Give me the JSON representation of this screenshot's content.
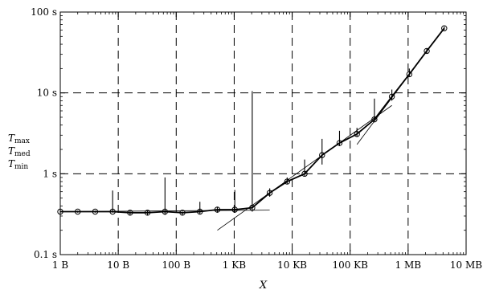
{
  "chart_data": {
    "type": "line",
    "title": "",
    "xlabel": "X",
    "ylabel_lines": [
      {
        "main": "T",
        "sub": "max"
      },
      {
        "main": "T",
        "sub": "med"
      },
      {
        "main": "T",
        "sub": "min"
      }
    ],
    "x_scale": "log2",
    "y_scale": "log10",
    "x_unit": "bytes",
    "y_unit": "seconds",
    "xlim": [
      1,
      10000000
    ],
    "ylim": [
      0.1,
      100
    ],
    "grid": true,
    "grid_style": "dashed",
    "x_ticks": [
      {
        "value": 1,
        "label": "1 B"
      },
      {
        "value": 10,
        "label": "10 B"
      },
      {
        "value": 100,
        "label": "100 B"
      },
      {
        "value": 1000,
        "label": "1 KB"
      },
      {
        "value": 10000,
        "label": "10 KB"
      },
      {
        "value": 100000,
        "label": "100 KB"
      },
      {
        "value": 1000000,
        "label": "1 MB"
      },
      {
        "value": 10000000,
        "label": "10 MB"
      }
    ],
    "y_ticks": [
      {
        "value": 0.1,
        "label": "0.1 s"
      },
      {
        "value": 1,
        "label": "1 s"
      },
      {
        "value": 10,
        "label": "10 s"
      },
      {
        "value": 100,
        "label": "100 s"
      }
    ],
    "series": [
      {
        "x": [
          1,
          2,
          4,
          8,
          16,
          32,
          64,
          128,
          256,
          512,
          1024,
          2048,
          4096,
          8192,
          16384,
          32768,
          65536,
          131072,
          262144,
          524288,
          1048576,
          2097152,
          4194304
        ],
        "t_med": [
          0.34,
          0.34,
          0.34,
          0.34,
          0.33,
          0.33,
          0.34,
          0.33,
          0.34,
          0.36,
          0.36,
          0.38,
          0.58,
          0.8,
          1.0,
          1.7,
          2.4,
          3.1,
          4.7,
          9.0,
          17.0,
          33.0,
          63.0
        ],
        "t_min": [
          0.33,
          0.33,
          0.33,
          0.33,
          0.31,
          0.31,
          0.31,
          0.31,
          0.32,
          0.33,
          0.33,
          0.34,
          0.52,
          0.75,
          0.93,
          1.3,
          2.2,
          2.9,
          4.4,
          8.0,
          16.0,
          31.0,
          60.0
        ],
        "t_max": [
          0.35,
          0.35,
          0.35,
          0.62,
          0.34,
          0.35,
          0.9,
          0.34,
          0.45,
          0.39,
          0.63,
          10.5,
          0.66,
          0.9,
          1.5,
          2.7,
          3.4,
          3.7,
          8.5,
          11.0,
          20.0,
          35.0,
          66.0
        ]
      }
    ],
    "fit_lines": [
      {
        "from": [
          1,
          0.34
        ],
        "to": [
          4096,
          0.355
        ]
      },
      {
        "from": [
          512,
          0.2
        ],
        "to": [
          524288,
          7.0
        ]
      },
      {
        "from": [
          131072,
          2.3
        ],
        "to": [
          4194304,
          64.0
        ]
      }
    ]
  }
}
